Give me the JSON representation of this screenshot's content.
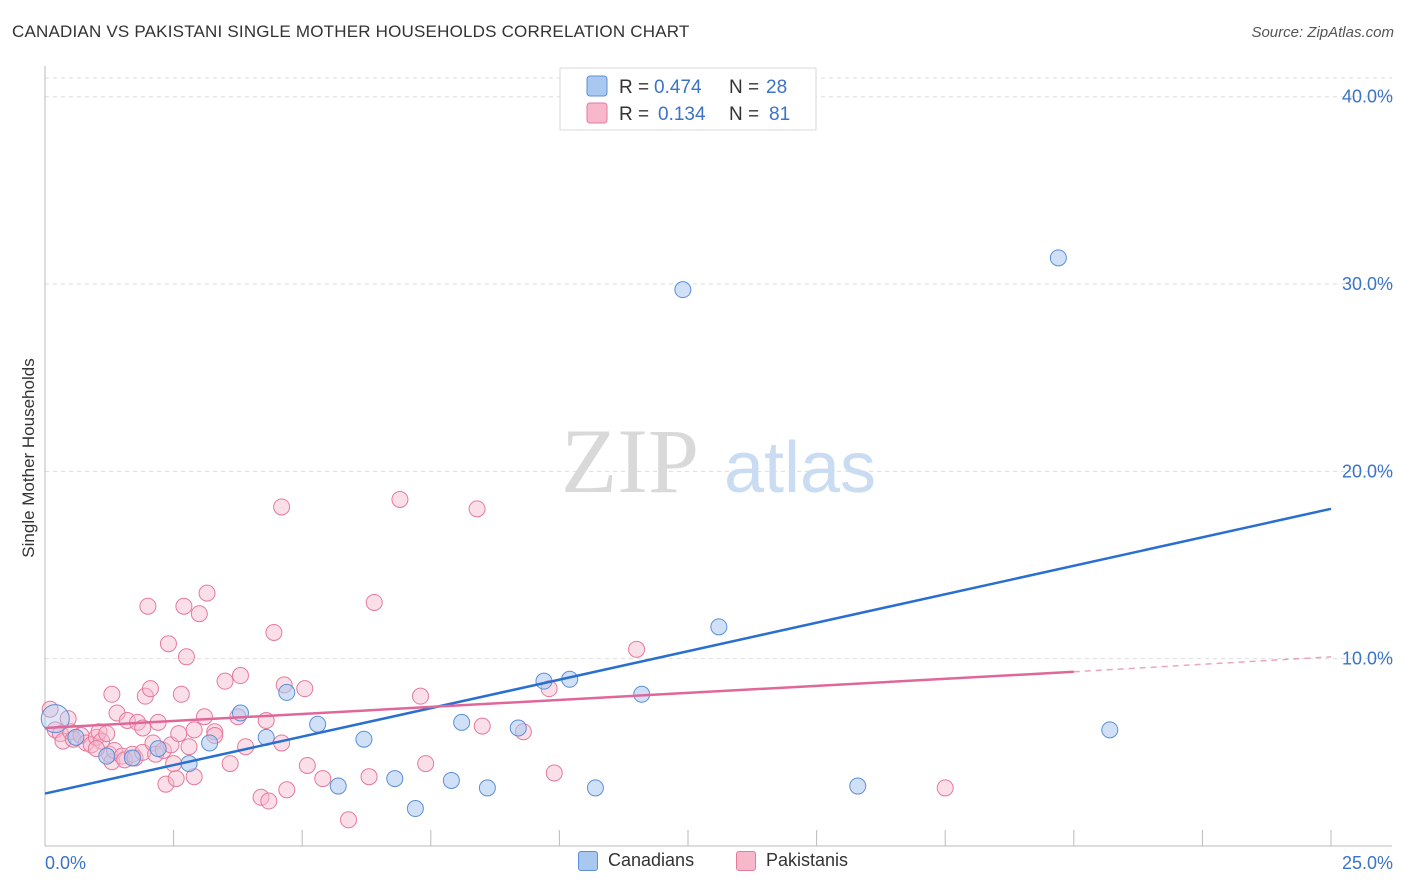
{
  "header": {
    "title": "CANADIAN VS PAKISTANI SINGLE MOTHER HOUSEHOLDS CORRELATION CHART",
    "source": "Source: ZipAtlas.com"
  },
  "watermark": {
    "zip": "ZIP",
    "atlas": "atlas"
  },
  "colors": {
    "canadians_fill": "#a9c8f0",
    "canadians_stroke": "#5b8fd6",
    "canadians_line": "#2a6fd0",
    "pakistanis_fill": "#f7b8cb",
    "pakistanis_stroke": "#e57a9c",
    "pakistanis_line": "#e0679a",
    "axis_text": "#3a73c8",
    "grid": "#dddddd"
  },
  "chart_data": {
    "type": "scatter",
    "title": "CANADIAN VS PAKISTANI SINGLE MOTHER HOUSEHOLDS CORRELATION CHART",
    "xlabel": "",
    "ylabel": "Single Mother Households",
    "xlim": [
      0,
      25
    ],
    "ylim": [
      0,
      41
    ],
    "x_tick_labels": [
      "0.0%",
      "25.0%"
    ],
    "y_ticks": [
      10,
      20,
      30,
      40
    ],
    "y_tick_labels": [
      "10.0%",
      "20.0%",
      "30.0%",
      "40.0%"
    ],
    "grid": true,
    "legend_position": "top-center",
    "legend": [
      {
        "r_label": "R =",
        "r_value": "0.474",
        "n_label": "N =",
        "n_value": "28"
      },
      {
        "r_label": "R =",
        "r_value": "0.134",
        "n_label": "N =",
        "n_value": "81"
      }
    ],
    "series": [
      {
        "name": "Canadians",
        "trend": {
          "x0": 0,
          "y0": 2.8,
          "x1": 25,
          "y1": 18.0
        },
        "points": [
          [
            0.2,
            6.8
          ],
          [
            1.2,
            4.8
          ],
          [
            1.7,
            4.7
          ],
          [
            2.2,
            5.2
          ],
          [
            2.8,
            4.4
          ],
          [
            3.2,
            5.5
          ],
          [
            3.8,
            7.1
          ],
          [
            4.3,
            5.8
          ],
          [
            4.7,
            8.2
          ],
          [
            5.3,
            6.5
          ],
          [
            5.7,
            3.2
          ],
          [
            6.2,
            5.7
          ],
          [
            6.8,
            3.6
          ],
          [
            7.2,
            2.0
          ],
          [
            7.9,
            3.5
          ],
          [
            8.1,
            6.6
          ],
          [
            8.6,
            3.1
          ],
          [
            9.2,
            6.3
          ],
          [
            9.7,
            8.8
          ],
          [
            10.2,
            8.9
          ],
          [
            10.7,
            3.1
          ],
          [
            11.6,
            8.1
          ],
          [
            12.4,
            29.7
          ],
          [
            13.1,
            11.7
          ],
          [
            15.8,
            3.2
          ],
          [
            19.7,
            31.4
          ],
          [
            20.7,
            6.2
          ],
          [
            0.6,
            5.8
          ]
        ]
      },
      {
        "name": "Pakistanis",
        "trend": {
          "x0": 0,
          "y0": 6.3,
          "x1": 20,
          "y1": 9.3,
          "dash_x1": 25,
          "dash_y1": 10.1
        },
        "points": [
          [
            0.1,
            7.3
          ],
          [
            0.2,
            6.2
          ],
          [
            0.3,
            6.0
          ],
          [
            0.35,
            5.6
          ],
          [
            0.5,
            6.1
          ],
          [
            0.55,
            5.7
          ],
          [
            0.7,
            5.9
          ],
          [
            0.8,
            5.5
          ],
          [
            0.9,
            5.4
          ],
          [
            1.0,
            5.8
          ],
          [
            1.05,
            6.1
          ],
          [
            1.1,
            5.6
          ],
          [
            1.2,
            6.0
          ],
          [
            1.25,
            4.9
          ],
          [
            1.3,
            4.5
          ],
          [
            1.3,
            8.1
          ],
          [
            1.35,
            5.1
          ],
          [
            1.4,
            7.1
          ],
          [
            1.5,
            4.8
          ],
          [
            1.55,
            4.6
          ],
          [
            1.6,
            6.7
          ],
          [
            1.7,
            4.9
          ],
          [
            1.75,
            4.7
          ],
          [
            1.8,
            6.6
          ],
          [
            1.9,
            5.0
          ],
          [
            1.95,
            8.0
          ],
          [
            2.0,
            12.8
          ],
          [
            2.05,
            8.4
          ],
          [
            2.1,
            5.5
          ],
          [
            2.15,
            4.9
          ],
          [
            2.2,
            6.6
          ],
          [
            2.3,
            5.1
          ],
          [
            2.35,
            3.3
          ],
          [
            2.4,
            10.8
          ],
          [
            2.45,
            5.4
          ],
          [
            2.5,
            4.4
          ],
          [
            2.55,
            3.6
          ],
          [
            2.6,
            6.0
          ],
          [
            2.65,
            8.1
          ],
          [
            2.7,
            12.8
          ],
          [
            2.75,
            10.1
          ],
          [
            2.8,
            5.3
          ],
          [
            2.9,
            3.7
          ],
          [
            3.0,
            12.4
          ],
          [
            3.1,
            6.9
          ],
          [
            3.15,
            13.5
          ],
          [
            3.3,
            6.1
          ],
          [
            3.5,
            8.8
          ],
          [
            3.6,
            4.4
          ],
          [
            3.75,
            6.9
          ],
          [
            3.8,
            9.1
          ],
          [
            3.9,
            5.3
          ],
          [
            4.2,
            2.6
          ],
          [
            4.3,
            6.7
          ],
          [
            4.35,
            2.4
          ],
          [
            4.45,
            11.4
          ],
          [
            4.6,
            18.1
          ],
          [
            4.65,
            8.6
          ],
          [
            4.7,
            3.0
          ],
          [
            5.05,
            8.4
          ],
          [
            5.1,
            4.3
          ],
          [
            5.4,
            3.6
          ],
          [
            5.9,
            1.4
          ],
          [
            6.3,
            3.7
          ],
          [
            6.4,
            13.0
          ],
          [
            6.9,
            18.5
          ],
          [
            7.3,
            8.0
          ],
          [
            7.4,
            4.4
          ],
          [
            8.4,
            18.0
          ],
          [
            8.5,
            6.4
          ],
          [
            9.3,
            6.1
          ],
          [
            9.8,
            8.4
          ],
          [
            9.9,
            3.9
          ],
          [
            11.5,
            10.5
          ],
          [
            17.5,
            3.1
          ],
          [
            4.6,
            5.5
          ],
          [
            3.3,
            5.9
          ],
          [
            1.9,
            6.3
          ],
          [
            0.45,
            6.8
          ],
          [
            1.0,
            5.2
          ],
          [
            2.9,
            6.2
          ]
        ]
      }
    ]
  }
}
